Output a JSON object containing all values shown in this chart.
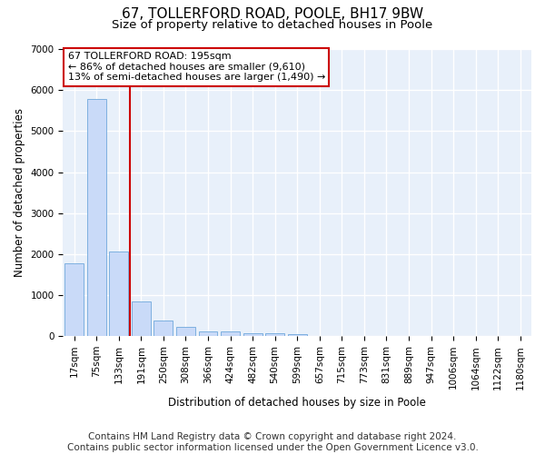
{
  "title": "67, TOLLERFORD ROAD, POOLE, BH17 9BW",
  "subtitle": "Size of property relative to detached houses in Poole",
  "xlabel": "Distribution of detached houses by size in Poole",
  "ylabel": "Number of detached properties",
  "bar_color": "#c9daf8",
  "bar_edge_color": "#6fa8dc",
  "vline_color": "#cc0000",
  "vline_x_idx": 3,
  "annotation_text": "67 TOLLERFORD ROAD: 195sqm\n← 86% of detached houses are smaller (9,610)\n13% of semi-detached houses are larger (1,490) →",
  "annotation_box_color": "white",
  "annotation_box_edge": "#cc0000",
  "categories": [
    "17sqm",
    "75sqm",
    "133sqm",
    "191sqm",
    "250sqm",
    "308sqm",
    "366sqm",
    "424sqm",
    "482sqm",
    "540sqm",
    "599sqm",
    "657sqm",
    "715sqm",
    "773sqm",
    "831sqm",
    "889sqm",
    "947sqm",
    "1006sqm",
    "1064sqm",
    "1122sqm",
    "1180sqm"
  ],
  "values": [
    1780,
    5780,
    2060,
    840,
    380,
    220,
    110,
    110,
    80,
    70,
    55,
    0,
    0,
    0,
    0,
    0,
    0,
    0,
    0,
    0,
    0
  ],
  "ylim": [
    0,
    7000
  ],
  "yticks": [
    0,
    1000,
    2000,
    3000,
    4000,
    5000,
    6000,
    7000
  ],
  "footer1": "Contains HM Land Registry data © Crown copyright and database right 2024.",
  "footer2": "Contains public sector information licensed under the Open Government Licence v3.0.",
  "bg_color": "#ffffff",
  "plot_bg_color": "#e8f0fa",
  "grid_color": "white",
  "title_fontsize": 11,
  "subtitle_fontsize": 9.5,
  "axis_label_fontsize": 8.5,
  "tick_fontsize": 7.5,
  "footer_fontsize": 7.5,
  "annotation_fontsize": 8
}
